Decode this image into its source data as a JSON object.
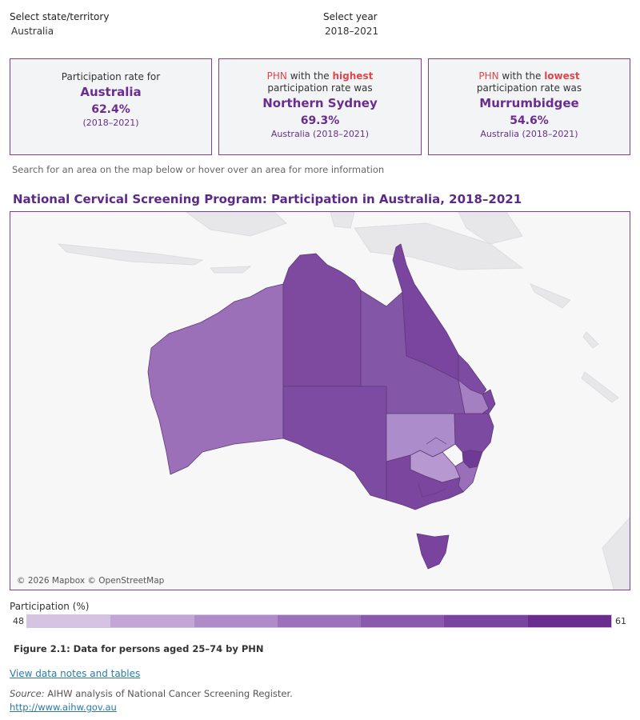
{
  "selectors": {
    "state": {
      "label": "Select state/territory",
      "value": "Australia"
    },
    "year": {
      "label": "Select year",
      "value": "2018–2021"
    }
  },
  "cards": {
    "overall": {
      "line1": "Participation rate for",
      "area": "Australia",
      "rate": "62.4%",
      "period": "(2018–2021)"
    },
    "highest": {
      "phn": "PHN",
      "with_the": " with the ",
      "keyword": "highest",
      "line2": "participation rate was",
      "name": "Northern Sydney",
      "rate": "69.3%",
      "period": "Australia (2018–2021)"
    },
    "lowest": {
      "phn": "PHN",
      "with_the": " with the ",
      "keyword": "lowest",
      "line2": "participation rate was",
      "name": "Murrumbidgee",
      "rate": "54.6%",
      "period": "Australia (2018–2021)"
    }
  },
  "search_hint": "Search for an area on the map below or hover over an area for more information",
  "map": {
    "title": "National Cervical Screening Program: Participation in Australia, 2018–2021",
    "attribution": "© 2026 Mapbox © OpenStreetMap"
  },
  "legend": {
    "title": "Participation (%)",
    "min": "48",
    "max": "61",
    "colors": [
      "#d6c2e2",
      "#c3a6d6",
      "#b08bc9",
      "#9c70bb",
      "#8a58ad",
      "#7a439f",
      "#6a2d8f"
    ]
  },
  "figure_caption": "Figure 2.1: Data for persons aged 25–74 by PHN",
  "data_link": "View data notes and tables",
  "source": {
    "label": "Source:",
    "text": " AIHW analysis of National Cancer Screening Register.",
    "url": "http://www.aihw.gov.au"
  },
  "colors": {
    "accent": "#6a2d8f",
    "highlight_red": "#e0464b",
    "link": "#2a79a8"
  }
}
